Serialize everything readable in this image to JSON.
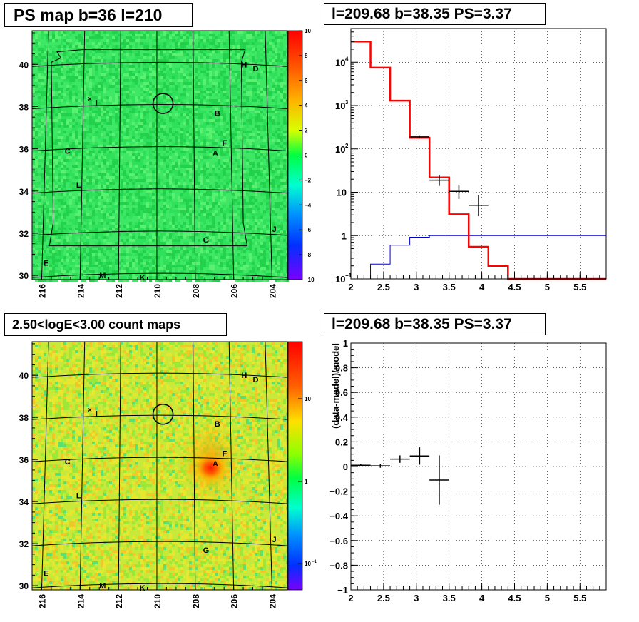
{
  "panels": {
    "ps_map": {
      "title": "PS map b=36 l=210",
      "x_ticks": [
        "216",
        "214",
        "212",
        "210",
        "208",
        "206",
        "204"
      ],
      "y_ticks": [
        "30",
        "32",
        "34",
        "36",
        "38",
        "40"
      ],
      "colorbar_ticks": [
        "10",
        "8",
        "6",
        "4",
        "2",
        "0",
        "−2",
        "−4",
        "−6",
        "−8",
        "−10"
      ]
    },
    "spectrum": {
      "title": "l=209.68 b=38.35 PS=3.37",
      "x_ticks": [
        "2",
        "2.5",
        "3",
        "3.5",
        "4",
        "4.5",
        "5",
        "5.5"
      ],
      "y_tick_base": "10",
      "y_tick_exponents": [
        "−1",
        "",
        "",
        "2",
        "3",
        "4"
      ],
      "y_tick_plain": [
        "",
        "1",
        "10",
        "",
        "",
        ""
      ]
    },
    "count_map": {
      "title": "2.50<logE<3.00 count maps",
      "x_ticks": [
        "216",
        "214",
        "212",
        "210",
        "208",
        "206",
        "204"
      ],
      "y_ticks": [
        "30",
        "32",
        "34",
        "36",
        "38",
        "40"
      ],
      "colorbar_ticks": [
        "10",
        "1",
        "10"
      ],
      "colorbar_exp": "−1"
    },
    "residual": {
      "title": "l=209.68 b=38.35 PS=3.37",
      "ylabel": "(data-model)/model",
      "x_ticks": [
        "2",
        "2.5",
        "3",
        "3.5",
        "4",
        "4.5",
        "5",
        "5.5"
      ],
      "y_ticks": [
        "1",
        "0.8",
        "0.6",
        "0.4",
        "0.2",
        "0",
        "−0.2",
        "−0.4",
        "−0.6",
        "−0.8",
        "−1"
      ]
    }
  },
  "source_labels": [
    "A",
    "B",
    "C",
    "D",
    "E",
    "F",
    "G",
    "H",
    "I",
    "J",
    "K",
    "L",
    "M"
  ],
  "colors": {
    "model_line": "#ff0000",
    "background_line": "#0000cc",
    "map_fill": "#2fe05a",
    "count_fill": "#c8e83a"
  },
  "chart_data": [
    {
      "type": "heatmap",
      "title": "PS map b=36 l=210",
      "xlim": [
        216.5,
        203.2
      ],
      "ylim": [
        29.8,
        41.6
      ],
      "zlim": [
        -10,
        10
      ],
      "typical_value": 0
    },
    {
      "type": "line",
      "title": "l=209.68 b=38.35 PS=3.37",
      "xlim": [
        2,
        5.9
      ],
      "ylim": [
        0.1,
        60000
      ],
      "log_y": true,
      "grid": true,
      "series": [
        {
          "values": [
            {
              "x0": 2.0,
              "x1": 2.3,
              "y": 30000
            },
            {
              "x0": 2.3,
              "x1": 2.6,
              "y": 7500
            },
            {
              "x0": 2.6,
              "x1": 2.9,
              "y": 1300
            },
            {
              "x0": 2.9,
              "x1": 3.2,
              "y": 180
            },
            {
              "x0": 3.2,
              "x1": 3.5,
              "y": 22
            },
            {
              "x0": 3.5,
              "x1": 3.8,
              "y": 3.1
            },
            {
              "x0": 3.8,
              "x1": 4.1,
              "y": 0.55
            },
            {
              "x0": 4.1,
              "x1": 4.4,
              "y": 0.2
            },
            {
              "x0": 4.4,
              "x1": 5.9,
              "y": 0.1
            }
          ]
        },
        {
          "values": [
            {
              "x0": 2.3,
              "x1": 2.6,
              "y": 0.22
            },
            {
              "x0": 2.6,
              "x1": 2.9,
              "y": 0.6
            },
            {
              "x0": 2.9,
              "x1": 3.2,
              "y": 0.92
            },
            {
              "x0": 3.2,
              "x1": 5.9,
              "y": 1.0
            }
          ]
        },
        {
          "points": [
            {
              "x": 3.05,
              "y": 190,
              "xerr": 0.15,
              "ylo": 175,
              "yhi": 205
            },
            {
              "x": 3.35,
              "y": 19,
              "xerr": 0.15,
              "ylo": 14,
              "yhi": 25
            },
            {
              "x": 3.65,
              "y": 10.5,
              "xerr": 0.15,
              "ylo": 7,
              "yhi": 15
            },
            {
              "x": 3.95,
              "y": 5,
              "xerr": 0.15,
              "ylo": 2.8,
              "yhi": 8.5
            }
          ]
        }
      ]
    },
    {
      "type": "heatmap",
      "title": "2.50<logE<3.00 count maps",
      "xlim": [
        216.5,
        203.2
      ],
      "ylim": [
        29.8,
        41.6
      ],
      "log_z": true,
      "hotspot": {
        "l": 207.2,
        "b": 35.6
      }
    },
    {
      "type": "scatter",
      "title": "l=209.68 b=38.35 PS=3.37",
      "ylabel": "(data-model)/model",
      "xlim": [
        2,
        5.9
      ],
      "ylim": [
        -1,
        1
      ],
      "grid": true,
      "points": [
        {
          "x": 2.15,
          "y": 0.01,
          "xerr": 0.15,
          "yerr": 0.01
        },
        {
          "x": 2.45,
          "y": 0.005,
          "xerr": 0.15,
          "yerr": 0.015
        },
        {
          "x": 2.75,
          "y": 0.06,
          "xerr": 0.15,
          "yerr": 0.03
        },
        {
          "x": 3.05,
          "y": 0.085,
          "xerr": 0.15,
          "yerr": 0.07
        },
        {
          "x": 3.35,
          "y": -0.11,
          "xerr": 0.15,
          "yerr": 0.2
        }
      ]
    }
  ]
}
